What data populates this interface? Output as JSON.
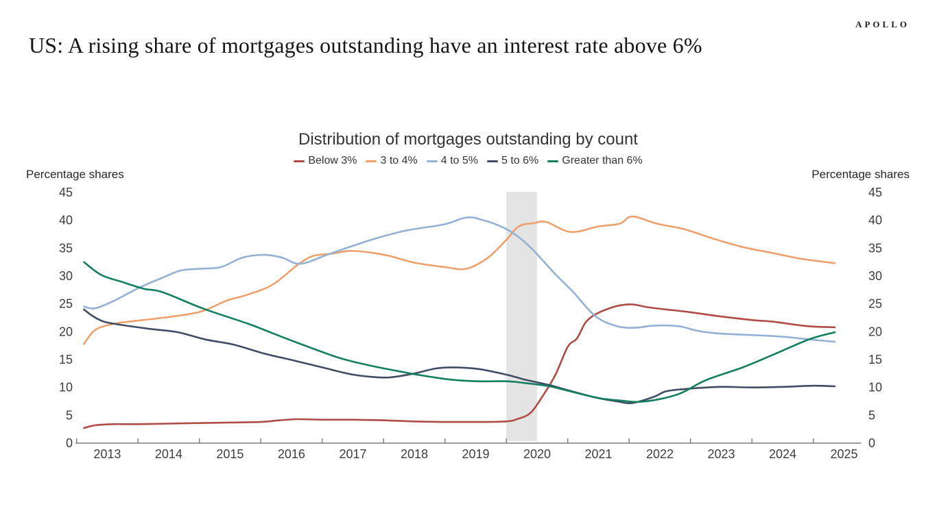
{
  "page": {
    "title": "US: A rising share of mortgages outstanding have an interest rate above 6%",
    "logo": "APOLLO"
  },
  "chart_data": {
    "type": "line",
    "title": "Distribution of mortgages outstanding by count",
    "ylabel_left": "Percentage shares",
    "ylabel_right": "Percentage shares",
    "ylim": [
      0,
      45
    ],
    "ytick_step": 5,
    "xticks": [
      2013,
      2014,
      2015,
      2016,
      2017,
      2018,
      2019,
      2020,
      2021,
      2022,
      2023,
      2024,
      2025
    ],
    "grid": false,
    "legend_position": "top",
    "recession_band": {
      "x_from": 2020.0,
      "x_to": 2020.5,
      "color": "#e4e4e4"
    },
    "series": [
      {
        "name": "Below 3%",
        "color": "#b04a44",
        "points": [
          [
            2013.12,
            2.7
          ],
          [
            2013.3,
            3.2
          ],
          [
            2013.6,
            3.4
          ],
          [
            2014.0,
            3.4
          ],
          [
            2014.5,
            3.5
          ],
          [
            2015.0,
            3.6
          ],
          [
            2015.5,
            3.7
          ],
          [
            2016.0,
            3.8
          ],
          [
            2016.3,
            4.1
          ],
          [
            2016.6,
            4.3
          ],
          [
            2017.0,
            4.2
          ],
          [
            2017.5,
            4.2
          ],
          [
            2018.0,
            4.1
          ],
          [
            2018.5,
            3.9
          ],
          [
            2019.0,
            3.8
          ],
          [
            2019.5,
            3.8
          ],
          [
            2020.0,
            3.9
          ],
          [
            2020.2,
            4.4
          ],
          [
            2020.4,
            5.5
          ],
          [
            2020.6,
            8.6
          ],
          [
            2020.8,
            12.3
          ],
          [
            2021.0,
            17.3
          ],
          [
            2021.15,
            18.8
          ],
          [
            2021.3,
            21.8
          ],
          [
            2021.5,
            23.4
          ],
          [
            2021.8,
            24.6
          ],
          [
            2022.05,
            24.9
          ],
          [
            2022.3,
            24.4
          ],
          [
            2022.6,
            24.0
          ],
          [
            2023.0,
            23.5
          ],
          [
            2023.45,
            22.8
          ],
          [
            2024.0,
            22.1
          ],
          [
            2024.35,
            21.8
          ],
          [
            2024.9,
            21.0
          ],
          [
            2025.35,
            20.8
          ]
        ]
      },
      {
        "name": "3 to 4%",
        "color": "#eda06b",
        "points": [
          [
            2013.12,
            17.8
          ],
          [
            2013.3,
            20.3
          ],
          [
            2013.6,
            21.4
          ],
          [
            2014.0,
            22.0
          ],
          [
            2014.4,
            22.5
          ],
          [
            2014.85,
            23.2
          ],
          [
            2015.1,
            23.9
          ],
          [
            2015.45,
            25.6
          ],
          [
            2015.8,
            26.7
          ],
          [
            2016.2,
            28.5
          ],
          [
            2016.6,
            32.0
          ],
          [
            2016.85,
            33.6
          ],
          [
            2017.15,
            34.0
          ],
          [
            2017.45,
            34.5
          ],
          [
            2017.8,
            34.2
          ],
          [
            2018.1,
            33.6
          ],
          [
            2018.5,
            32.4
          ],
          [
            2019.0,
            31.6
          ],
          [
            2019.35,
            31.3
          ],
          [
            2019.7,
            33.3
          ],
          [
            2020.0,
            36.5
          ],
          [
            2020.2,
            38.9
          ],
          [
            2020.45,
            39.5
          ],
          [
            2020.65,
            39.7
          ],
          [
            2021.05,
            37.9
          ],
          [
            2021.5,
            38.9
          ],
          [
            2021.85,
            39.4
          ],
          [
            2022.05,
            40.7
          ],
          [
            2022.45,
            39.4
          ],
          [
            2022.9,
            38.4
          ],
          [
            2023.4,
            36.6
          ],
          [
            2023.85,
            35.2
          ],
          [
            2024.35,
            34.1
          ],
          [
            2024.8,
            33.1
          ],
          [
            2025.35,
            32.3
          ]
        ]
      },
      {
        "name": "4 to 5%",
        "color": "#92b1d5",
        "points": [
          [
            2013.12,
            24.5
          ],
          [
            2013.3,
            24.2
          ],
          [
            2013.6,
            25.5
          ],
          [
            2014.0,
            27.8
          ],
          [
            2014.4,
            29.7
          ],
          [
            2014.7,
            31.0
          ],
          [
            2015.0,
            31.3
          ],
          [
            2015.35,
            31.6
          ],
          [
            2015.7,
            33.3
          ],
          [
            2016.05,
            33.8
          ],
          [
            2016.35,
            33.3
          ],
          [
            2016.65,
            32.2
          ],
          [
            2017.15,
            34.1
          ],
          [
            2017.8,
            36.5
          ],
          [
            2018.3,
            38.0
          ],
          [
            2018.6,
            38.6
          ],
          [
            2019.0,
            39.3
          ],
          [
            2019.35,
            40.5
          ],
          [
            2019.6,
            40.1
          ],
          [
            2019.95,
            38.7
          ],
          [
            2020.2,
            37.0
          ],
          [
            2020.45,
            34.5
          ],
          [
            2020.8,
            30.3
          ],
          [
            2021.1,
            27.0
          ],
          [
            2021.45,
            22.8
          ],
          [
            2021.8,
            21.0
          ],
          [
            2022.1,
            20.7
          ],
          [
            2022.4,
            21.1
          ],
          [
            2022.8,
            21.0
          ],
          [
            2023.1,
            20.2
          ],
          [
            2023.45,
            19.7
          ],
          [
            2024.0,
            19.4
          ],
          [
            2024.5,
            19.1
          ],
          [
            2024.95,
            18.6
          ],
          [
            2025.35,
            18.2
          ]
        ]
      },
      {
        "name": "5 to 6%",
        "color": "#3e4c66",
        "points": [
          [
            2013.12,
            24.0
          ],
          [
            2013.25,
            22.9
          ],
          [
            2013.45,
            21.8
          ],
          [
            2013.8,
            21.1
          ],
          [
            2014.2,
            20.5
          ],
          [
            2014.65,
            19.9
          ],
          [
            2015.1,
            18.6
          ],
          [
            2015.55,
            17.7
          ],
          [
            2016.05,
            16.1
          ],
          [
            2016.55,
            14.8
          ],
          [
            2017.0,
            13.6
          ],
          [
            2017.45,
            12.4
          ],
          [
            2017.8,
            11.9
          ],
          [
            2018.1,
            11.8
          ],
          [
            2018.5,
            12.5
          ],
          [
            2018.85,
            13.4
          ],
          [
            2019.15,
            13.6
          ],
          [
            2019.55,
            13.3
          ],
          [
            2020.0,
            12.3
          ],
          [
            2020.3,
            11.4
          ],
          [
            2020.55,
            10.8
          ],
          [
            2020.75,
            10.3
          ],
          [
            2021.0,
            9.5
          ],
          [
            2021.45,
            8.2
          ],
          [
            2021.8,
            7.5
          ],
          [
            2022.05,
            7.2
          ],
          [
            2022.4,
            8.3
          ],
          [
            2022.6,
            9.3
          ],
          [
            2022.9,
            9.7
          ],
          [
            2023.45,
            10.1
          ],
          [
            2024.0,
            10.0
          ],
          [
            2024.5,
            10.1
          ],
          [
            2025.0,
            10.3
          ],
          [
            2025.35,
            10.2
          ]
        ]
      },
      {
        "name": "Greater than 6%",
        "color": "#117f5d",
        "points": [
          [
            2013.12,
            32.5
          ],
          [
            2013.4,
            30.2
          ],
          [
            2013.75,
            28.9
          ],
          [
            2014.1,
            27.7
          ],
          [
            2014.4,
            27.1
          ],
          [
            2015.05,
            24.2
          ],
          [
            2015.8,
            21.4
          ],
          [
            2016.2,
            19.7
          ],
          [
            2016.6,
            18.0
          ],
          [
            2017.25,
            15.4
          ],
          [
            2017.75,
            14.0
          ],
          [
            2018.3,
            12.8
          ],
          [
            2018.6,
            12.2
          ],
          [
            2019.1,
            11.4
          ],
          [
            2019.55,
            11.1
          ],
          [
            2020.0,
            11.1
          ],
          [
            2020.3,
            10.8
          ],
          [
            2020.7,
            10.2
          ],
          [
            2021.0,
            9.4
          ],
          [
            2021.5,
            8.1
          ],
          [
            2021.9,
            7.6
          ],
          [
            2022.15,
            7.4
          ],
          [
            2022.5,
            7.9
          ],
          [
            2022.85,
            9.0
          ],
          [
            2023.25,
            11.3
          ],
          [
            2023.85,
            13.6
          ],
          [
            2024.35,
            15.9
          ],
          [
            2024.95,
            18.7
          ],
          [
            2025.35,
            19.9
          ]
        ]
      }
    ]
  }
}
